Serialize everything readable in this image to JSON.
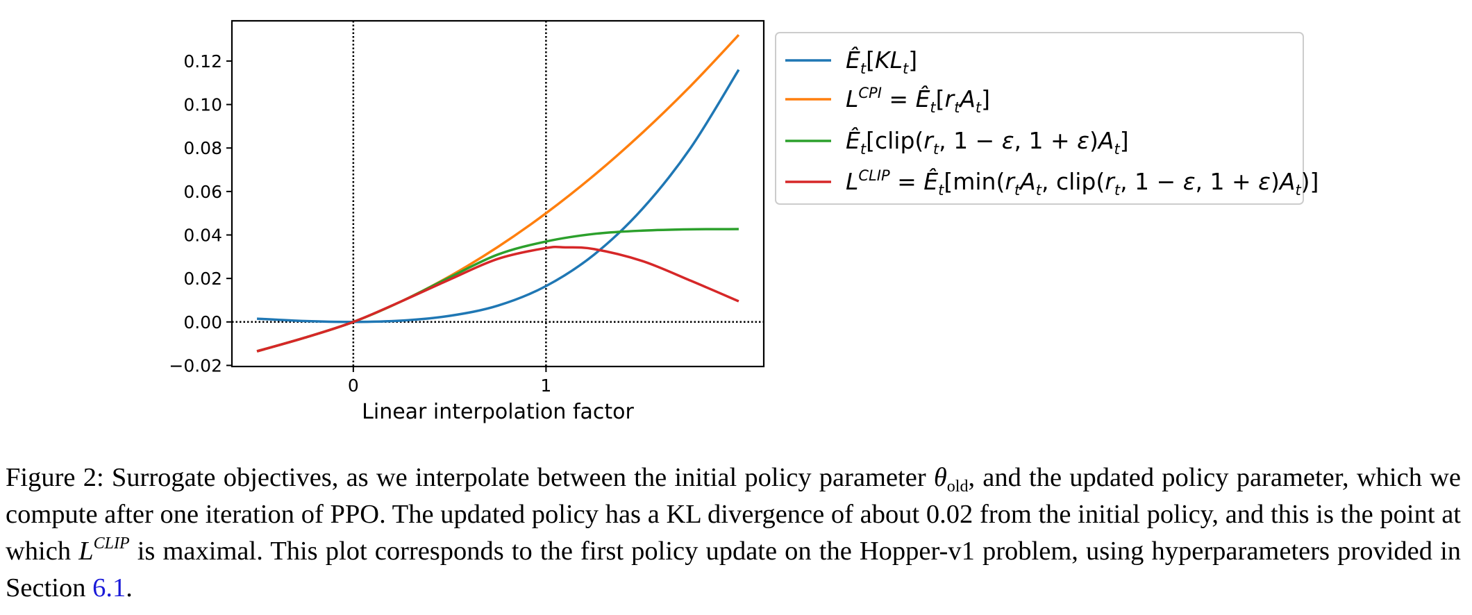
{
  "chart_data": {
    "type": "line",
    "title": "",
    "xlabel": "Linear interpolation factor",
    "ylabel": "",
    "xlim": [
      -0.63,
      2.13
    ],
    "ylim": [
      -0.0205,
      0.1385
    ],
    "xticks": [
      0,
      1
    ],
    "xtick_labels": [
      "0",
      "1"
    ],
    "yticks": [
      -0.02,
      0.0,
      0.02,
      0.04,
      0.06,
      0.08,
      0.1,
      0.12
    ],
    "ytick_labels": [
      "−0.02",
      "0.00",
      "0.02",
      "0.04",
      "0.06",
      "0.08",
      "0.10",
      "0.12"
    ],
    "reference_lines": {
      "vertical": [
        0,
        1
      ],
      "horizontal": [
        0.0
      ],
      "style": "dotted"
    },
    "grid": false,
    "legend_position": "outside-right",
    "series": [
      {
        "name": "Ê_t[KL_t]",
        "color": "#1f77b4",
        "x": [
          -0.5,
          -0.25,
          0.0,
          0.25,
          0.5,
          0.75,
          1.0,
          1.25,
          1.5,
          1.75,
          2.0
        ],
        "y": [
          0.0015,
          0.0004,
          0.0,
          0.0006,
          0.0028,
          0.0075,
          0.0165,
          0.031,
          0.052,
          0.08,
          0.116
        ]
      },
      {
        "name": "L^CPI = Ê_t[r_t A_t]",
        "color": "#ff7f0e",
        "x": [
          -0.5,
          -0.25,
          0.0,
          0.25,
          0.5,
          0.75,
          1.0,
          1.25,
          1.5,
          1.75,
          2.0
        ],
        "y": [
          -0.0135,
          -0.0072,
          0.0,
          0.0095,
          0.021,
          0.0345,
          0.05,
          0.0675,
          0.087,
          0.1085,
          0.132
        ]
      },
      {
        "name": "Ê_t[clip(r_t, 1 − ε, 1 + ε)A_t]",
        "color": "#2ca02c",
        "x": [
          -0.5,
          -0.25,
          0.0,
          0.25,
          0.5,
          0.75,
          1.0,
          1.25,
          1.5,
          1.75,
          2.0
        ],
        "y": [
          -0.0135,
          -0.0072,
          0.0,
          0.0095,
          0.0205,
          0.031,
          0.037,
          0.0405,
          0.042,
          0.0426,
          0.0427
        ]
      },
      {
        "name": "L^CLIP = Ê_t[min(r_t A_t, clip(r_t, 1 − ε, 1 + ε)A_t)]",
        "color": "#d62728",
        "x": [
          -0.5,
          -0.25,
          0.0,
          0.25,
          0.5,
          0.75,
          1.0,
          1.1,
          1.25,
          1.5,
          1.75,
          2.0
        ],
        "y": [
          -0.0135,
          -0.0072,
          0.0,
          0.0095,
          0.0195,
          0.029,
          0.034,
          0.0343,
          0.0335,
          0.028,
          0.019,
          0.0095
        ]
      }
    ]
  },
  "caption": {
    "label": "Figure 2:",
    "text_1": "Surrogate objectives, as we interpolate between the initial policy parameter",
    "theta": "θ",
    "theta_sub": "old",
    "text_2": ", and the updated policy parameter, which we compute after one iteration of PPO. The updated policy has a KL divergence of about 0.02 from the initial policy, and this is the point at which",
    "lclip_L": "L",
    "lclip_sup": "CLIP",
    "text_3": "is maximal. This plot corresponds to the first policy update on the Hopper-v1 problem, using hyperparameters provided in Section",
    "section_ref": "6.1",
    "text_end": "."
  }
}
